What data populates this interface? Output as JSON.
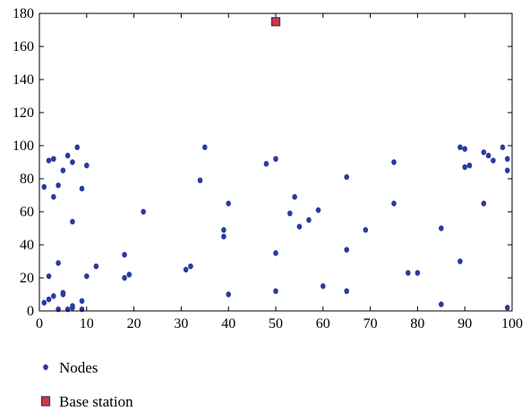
{
  "chart_data": {
    "type": "scatter",
    "title": "",
    "xlabel": "",
    "ylabel": "",
    "xlim": [
      0,
      100
    ],
    "ylim": [
      0,
      180
    ],
    "xticks": [
      0,
      10,
      20,
      30,
      40,
      50,
      60,
      70,
      80,
      90,
      100
    ],
    "yticks": [
      0,
      20,
      40,
      60,
      80,
      100,
      120,
      140,
      160,
      180
    ],
    "grid": false,
    "legend_position": "bottom-left",
    "series": [
      {
        "name": "Nodes",
        "marker": "dot",
        "color": "#2a3a9e",
        "points": [
          [
            1,
            75
          ],
          [
            1,
            5
          ],
          [
            2,
            7
          ],
          [
            2,
            21
          ],
          [
            2,
            91
          ],
          [
            3,
            92
          ],
          [
            3,
            69
          ],
          [
            3,
            9
          ],
          [
            4,
            76
          ],
          [
            4,
            29
          ],
          [
            4,
            1
          ],
          [
            5,
            85
          ],
          [
            5,
            10
          ],
          [
            5,
            11
          ],
          [
            6,
            94
          ],
          [
            6,
            1
          ],
          [
            7,
            90
          ],
          [
            7,
            54
          ],
          [
            7,
            2
          ],
          [
            7,
            3
          ],
          [
            8,
            99
          ],
          [
            9,
            74
          ],
          [
            9,
            6
          ],
          [
            9,
            1
          ],
          [
            10,
            88
          ],
          [
            10,
            21
          ],
          [
            12,
            27
          ],
          [
            18,
            20
          ],
          [
            18,
            34
          ],
          [
            19,
            22
          ],
          [
            22,
            60
          ],
          [
            31,
            25
          ],
          [
            32,
            27
          ],
          [
            34,
            79
          ],
          [
            35,
            99
          ],
          [
            39,
            49
          ],
          [
            39,
            45
          ],
          [
            40,
            65
          ],
          [
            40,
            10
          ],
          [
            48,
            89
          ],
          [
            50,
            92
          ],
          [
            50,
            35
          ],
          [
            50,
            12
          ],
          [
            53,
            59
          ],
          [
            54,
            69
          ],
          [
            55,
            51
          ],
          [
            57,
            55
          ],
          [
            59,
            61
          ],
          [
            60,
            15
          ],
          [
            65,
            81
          ],
          [
            65,
            37
          ],
          [
            65,
            12
          ],
          [
            69,
            49
          ],
          [
            75,
            90
          ],
          [
            75,
            65
          ],
          [
            78,
            23
          ],
          [
            80,
            23
          ],
          [
            85,
            50
          ],
          [
            85,
            4
          ],
          [
            89,
            99
          ],
          [
            89,
            30
          ],
          [
            90,
            98
          ],
          [
            90,
            87
          ],
          [
            91,
            88
          ],
          [
            94,
            96
          ],
          [
            94,
            65
          ],
          [
            95,
            94
          ],
          [
            96,
            91
          ],
          [
            98,
            99
          ],
          [
            99,
            92
          ],
          [
            99,
            85
          ],
          [
            99,
            2
          ]
        ]
      },
      {
        "name": "Base station",
        "marker": "square",
        "color": "#d9343b",
        "edge": "#2a3a9e",
        "points": [
          [
            50,
            175
          ]
        ]
      }
    ]
  }
}
